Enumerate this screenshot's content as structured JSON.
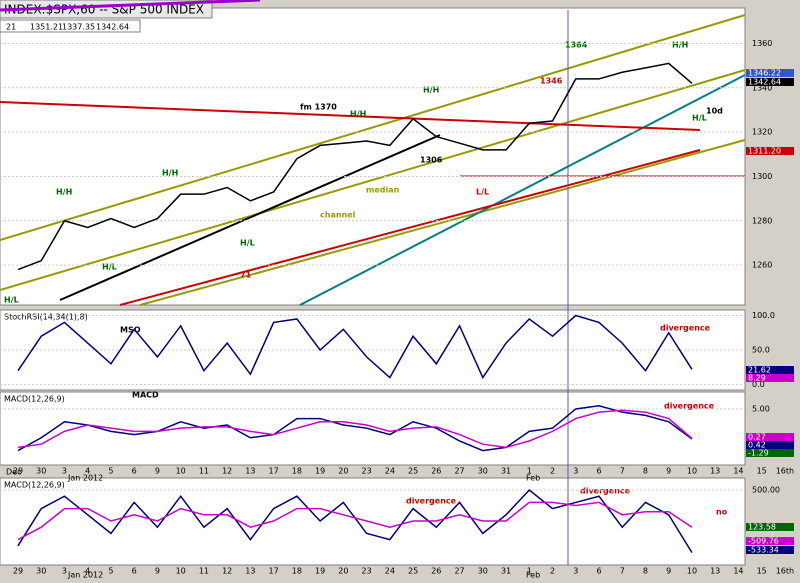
{
  "header": {
    "title": "INDEX:$SPX,60 -- S&P 500 INDEX",
    "quote": [
      "21",
      "1351.21",
      "1337.35",
      "1342.64"
    ]
  },
  "annotations": [
    "fm 1370",
    "1364",
    "1346",
    "1306",
    "H/H",
    "H/H",
    "H/H",
    "H/H",
    "H/H",
    "H/L",
    "H/L",
    "H/L",
    "H/L",
    "median",
    "channel",
    "71",
    "L/L",
    "10d",
    "MSO",
    "MACD",
    "divergence",
    "divergence",
    "divergence",
    "divergence",
    "no",
    "Jan 2012",
    "Feb",
    "Dec",
    "Jan 2012",
    "Feb"
  ],
  "axis_boxes": [
    "1346.22",
    "1342.64",
    "1311.20",
    "21.62",
    "8.29",
    "0.27",
    "0.42",
    "-1.29",
    "123.58",
    "-509.76",
    "-533.34"
  ],
  "chart_data": [
    {
      "type": "line",
      "ylim": [
        1242,
        1376
      ],
      "yticks": [
        1260,
        1280,
        1300,
        1320,
        1340,
        1360
      ],
      "grid": true,
      "series": [
        {
          "color": "#000000",
          "values": [
            1258,
            1262,
            1280,
            1277,
            1281,
            1277,
            1281,
            1292,
            1292,
            1295,
            1289,
            1293,
            1308,
            1314,
            1315,
            1316,
            1314,
            1326,
            1318,
            1315,
            1312,
            1312,
            1324,
            1325,
            1344,
            1344,
            1347,
            1349,
            1351,
            1342,
            null,
            null,
            null,
            null
          ]
        }
      ]
    },
    {
      "type": "line",
      "title": "StochRSI(14,34(1),8)",
      "ylim": [
        -8,
        108
      ],
      "yticks": [
        {
          "value": 0,
          "label": "0.0"
        },
        {
          "value": 50,
          "label": "50.0"
        },
        {
          "value": 100,
          "label": "100.0"
        }
      ],
      "grid": true,
      "series": [
        {
          "color": "#000080",
          "values": [
            20,
            70,
            90,
            60,
            30,
            80,
            40,
            85,
            20,
            60,
            15,
            90,
            95,
            50,
            80,
            40,
            10,
            70,
            30,
            85,
            10,
            60,
            95,
            70,
            100,
            90,
            60,
            20,
            75,
            22,
            null,
            null,
            null,
            null
          ]
        }
      ]
    },
    {
      "type": "line",
      "title": "MACD(12,26,9)",
      "ylim": [
        -3.75,
        7.65
      ],
      "yticks": [
        {
          "value": 5,
          "label": "5.00"
        }
      ],
      "grid": true,
      "categories": [
        "29",
        "30",
        "3",
        "4",
        "5",
        "6",
        "9",
        "10",
        "11",
        "12",
        "13",
        "17",
        "18",
        "19",
        "20",
        "23",
        "24",
        "25",
        "26",
        "27",
        "30",
        "31",
        "1",
        "2",
        "3",
        "6",
        "7",
        "8",
        "9",
        "10",
        "13",
        "14",
        "15",
        "16th"
      ],
      "series": [
        {
          "color": "#000080",
          "values": [
            -1.5,
            0.5,
            3,
            2.5,
            1.5,
            1,
            1.5,
            3,
            2,
            2.5,
            0.5,
            1,
            3.5,
            3.5,
            2.5,
            2,
            1,
            3,
            2,
            0,
            -1.5,
            -1,
            1.5,
            2,
            5,
            5.5,
            4.5,
            4,
            3,
            0.3,
            null,
            null,
            null,
            null
          ]
        },
        {
          "color": "#cc00cc",
          "values": [
            -1,
            -0.5,
            1.5,
            2.5,
            2,
            1.5,
            1.5,
            2,
            2.2,
            2.2,
            1.5,
            1,
            2,
            3,
            3,
            2.5,
            1.5,
            2,
            2.2,
            1,
            -0.5,
            -1,
            0,
            1.5,
            3.5,
            4.5,
            4.8,
            4.5,
            3.5,
            0.4,
            null,
            null,
            null,
            null
          ]
        }
      ]
    },
    {
      "type": "line",
      "title": "MACD(12,26,9)",
      "ylim": [
        -710,
        694
      ],
      "yticks": [
        {
          "value": 500,
          "label": "500.00"
        }
      ],
      "grid": true,
      "categories": [
        "29",
        "30",
        "3",
        "4",
        "5",
        "6",
        "9",
        "10",
        "11",
        "12",
        "13",
        "17",
        "18",
        "19",
        "20",
        "23",
        "24",
        "25",
        "26",
        "27",
        "30",
        "31",
        "1",
        "2",
        "3",
        "6",
        "7",
        "8",
        "9",
        "10",
        "13",
        "14",
        "15",
        "16th"
      ],
      "series": [
        {
          "color": "#000080",
          "values": [
            -400,
            200,
            400,
            100,
            -200,
            300,
            -100,
            400,
            -100,
            200,
            -300,
            200,
            400,
            0,
            300,
            -200,
            -300,
            200,
            -100,
            300,
            -200,
            100,
            500,
            200,
            300,
            400,
            -100,
            300,
            100,
            -510,
            null,
            null,
            null,
            null
          ]
        },
        {
          "color": "#cc00cc",
          "values": [
            -300,
            -100,
            200,
            200,
            0,
            100,
            0,
            200,
            100,
            100,
            -100,
            0,
            200,
            200,
            100,
            0,
            -100,
            0,
            0,
            100,
            0,
            0,
            300,
            300,
            250,
            300,
            100,
            150,
            150,
            -100,
            null,
            null,
            null,
            null
          ]
        }
      ]
    }
  ]
}
